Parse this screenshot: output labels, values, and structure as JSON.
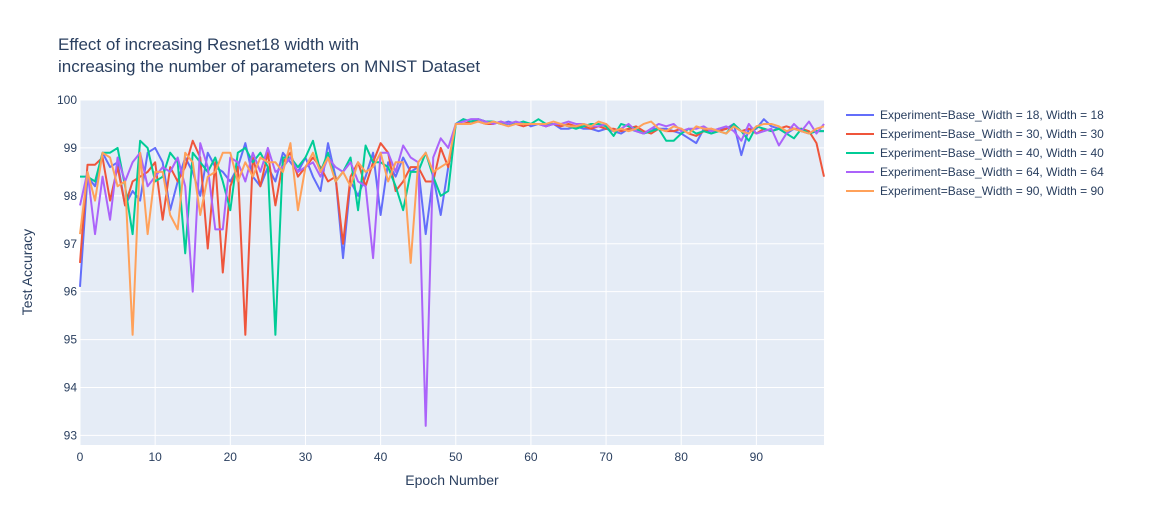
{
  "chart_data": {
    "type": "line",
    "title_line1": "Effect of increasing Resnet18 width with",
    "title_line2": "increasing the number of parameters on MNIST Dataset",
    "xlabel": "Epoch Number",
    "ylabel": "Test Accuracy",
    "xlim": [
      0,
      99
    ],
    "ylim": [
      92.8,
      100
    ],
    "xticks": [
      0,
      10,
      20,
      30,
      40,
      50,
      60,
      70,
      80,
      90
    ],
    "yticks": [
      93,
      94,
      95,
      96,
      97,
      98,
      99,
      100
    ],
    "grid": true,
    "legend_position": "top-right-outside",
    "plot_background": "#e5ecf6",
    "series": [
      {
        "name": "Experiment=Base_Width = 18, Width = 18",
        "color": "#636efa",
        "values": [
          96.1,
          98.4,
          98.2,
          98.9,
          98.6,
          98.7,
          97.8,
          98.1,
          97.9,
          98.9,
          99.0,
          98.7,
          97.7,
          98.3,
          98.8,
          98.5,
          98.0,
          98.9,
          98.6,
          98.5,
          98.3,
          98.6,
          99.1,
          98.4,
          98.2,
          98.6,
          98.3,
          98.9,
          98.7,
          98.5,
          98.8,
          98.4,
          98.1,
          99.1,
          98.4,
          96.7,
          98.3,
          98.0,
          98.4,
          98.9,
          97.6,
          98.7,
          98.4,
          98.8,
          98.5,
          98.6,
          97.2,
          98.4,
          97.6,
          98.6,
          99.5,
          99.6,
          99.55,
          99.6,
          99.55,
          99.55,
          99.5,
          99.55,
          99.5,
          99.55,
          99.45,
          99.5,
          99.45,
          99.5,
          99.4,
          99.4,
          99.45,
          99.4,
          99.4,
          99.35,
          99.4,
          99.35,
          99.3,
          99.4,
          99.35,
          99.3,
          99.4,
          99.4,
          99.4,
          99.35,
          99.3,
          99.2,
          99.1,
          99.4,
          99.3,
          99.4,
          99.4,
          99.5,
          98.85,
          99.4,
          99.4,
          99.6,
          99.45,
          99.4,
          99.3,
          99.4,
          99.35,
          99.3,
          99.35,
          99.35
        ]
      },
      {
        "name": "Experiment=Base_Width = 30, Width = 30",
        "color": "#ef553b",
        "values": [
          96.6,
          98.65,
          98.65,
          98.8,
          97.9,
          98.6,
          97.8,
          98.3,
          98.4,
          98.5,
          98.7,
          97.5,
          98.6,
          98.3,
          98.6,
          99.15,
          98.8,
          96.9,
          98.7,
          96.4,
          98.2,
          98.6,
          95.1,
          98.8,
          98.2,
          98.9,
          97.8,
          98.7,
          98.9,
          98.4,
          98.6,
          98.8,
          98.6,
          98.3,
          98.4,
          97.0,
          98.4,
          98.7,
          98.2,
          98.7,
          99.1,
          98.9,
          98.1,
          98.3,
          98.6,
          98.6,
          98.3,
          98.3,
          99.0,
          98.6,
          99.5,
          99.5,
          99.55,
          99.55,
          99.5,
          99.5,
          99.55,
          99.5,
          99.5,
          99.45,
          99.5,
          99.5,
          99.45,
          99.5,
          99.45,
          99.5,
          99.45,
          99.45,
          99.4,
          99.45,
          99.4,
          99.4,
          99.35,
          99.4,
          99.45,
          99.35,
          99.3,
          99.4,
          99.35,
          99.35,
          99.4,
          99.3,
          99.25,
          99.35,
          99.4,
          99.35,
          99.4,
          99.45,
          99.35,
          99.4,
          99.3,
          99.4,
          99.35,
          99.4,
          99.45,
          99.4,
          99.4,
          99.35,
          99.1,
          98.4
        ]
      },
      {
        "name": "Experiment=Base_Width = 40, Width = 40",
        "color": "#00cc96",
        "values": [
          98.4,
          98.4,
          98.3,
          98.9,
          98.9,
          99.0,
          98.2,
          97.2,
          99.15,
          99.0,
          98.3,
          98.4,
          98.9,
          98.7,
          96.8,
          98.9,
          98.7,
          98.5,
          98.8,
          98.3,
          97.7,
          98.9,
          99.0,
          98.7,
          98.9,
          98.6,
          95.1,
          98.8,
          98.8,
          98.6,
          98.8,
          99.15,
          98.5,
          98.9,
          98.3,
          98.5,
          98.8,
          97.7,
          99.05,
          98.7,
          98.7,
          98.6,
          98.2,
          97.7,
          98.5,
          98.5,
          98.9,
          98.4,
          98.0,
          98.1,
          99.5,
          99.6,
          99.55,
          99.6,
          99.55,
          99.55,
          99.5,
          99.5,
          99.5,
          99.55,
          99.5,
          99.6,
          99.5,
          99.5,
          99.5,
          99.45,
          99.4,
          99.45,
          99.5,
          99.5,
          99.45,
          99.25,
          99.5,
          99.45,
          99.4,
          99.3,
          99.35,
          99.4,
          99.15,
          99.15,
          99.3,
          99.4,
          99.3,
          99.35,
          99.3,
          99.35,
          99.3,
          99.5,
          99.35,
          99.15,
          99.45,
          99.4,
          99.35,
          99.4,
          99.3,
          99.2,
          99.4,
          99.3,
          99.35,
          99.35
        ]
      },
      {
        "name": "Experiment=Base_Width = 64, Width = 64",
        "color": "#ab63fa",
        "values": [
          97.8,
          98.5,
          97.2,
          98.4,
          97.5,
          98.8,
          98.3,
          98.7,
          98.9,
          98.2,
          98.4,
          98.6,
          98.5,
          98.8,
          98.2,
          96.0,
          99.1,
          98.6,
          97.3,
          97.3,
          98.8,
          98.7,
          98.3,
          98.9,
          98.5,
          99.0,
          98.5,
          98.6,
          98.8,
          98.5,
          98.6,
          98.7,
          98.4,
          98.8,
          98.6,
          98.5,
          98.7,
          98.3,
          98.2,
          96.7,
          98.9,
          98.9,
          98.5,
          99.05,
          98.8,
          98.7,
          93.2,
          98.8,
          99.2,
          99.0,
          99.5,
          99.55,
          99.6,
          99.6,
          99.55,
          99.5,
          99.55,
          99.5,
          99.55,
          99.5,
          99.5,
          99.5,
          99.45,
          99.5,
          99.5,
          99.55,
          99.5,
          99.5,
          99.45,
          99.45,
          99.5,
          99.35,
          99.4,
          99.5,
          99.35,
          99.3,
          99.4,
          99.5,
          99.45,
          99.5,
          99.35,
          99.4,
          99.4,
          99.45,
          99.35,
          99.4,
          99.45,
          99.35,
          99.15,
          99.5,
          99.3,
          99.35,
          99.4,
          99.05,
          99.3,
          99.5,
          99.35,
          99.55,
          99.3,
          99.5
        ]
      },
      {
        "name": "Experiment=Base_Width = 90, Width = 90",
        "color": "#ffa15a",
        "values": [
          97.2,
          98.5,
          97.9,
          98.9,
          98.8,
          98.2,
          98.3,
          95.1,
          98.9,
          97.2,
          98.5,
          98.5,
          97.6,
          97.3,
          98.9,
          98.7,
          97.6,
          98.4,
          98.5,
          98.9,
          98.9,
          98.3,
          98.7,
          98.4,
          98.8,
          98.7,
          98.7,
          98.5,
          99.1,
          97.7,
          98.6,
          98.9,
          98.5,
          98.8,
          98.3,
          98.5,
          98.2,
          98.7,
          98.5,
          98.6,
          98.9,
          98.3,
          98.7,
          98.7,
          96.6,
          98.7,
          98.9,
          98.5,
          98.6,
          98.7,
          99.5,
          99.5,
          99.5,
          99.55,
          99.5,
          99.55,
          99.5,
          99.45,
          99.5,
          99.5,
          99.5,
          99.5,
          99.5,
          99.55,
          99.5,
          99.45,
          99.45,
          99.5,
          99.45,
          99.55,
          99.5,
          99.35,
          99.4,
          99.35,
          99.4,
          99.5,
          99.55,
          99.4,
          99.35,
          99.45,
          99.4,
          99.3,
          99.45,
          99.4,
          99.4,
          99.35,
          99.3,
          99.45,
          99.35,
          99.3,
          99.45,
          99.5,
          99.5,
          99.45,
          99.35,
          99.4,
          99.35,
          99.3,
          99.4,
          99.45
        ]
      }
    ]
  }
}
